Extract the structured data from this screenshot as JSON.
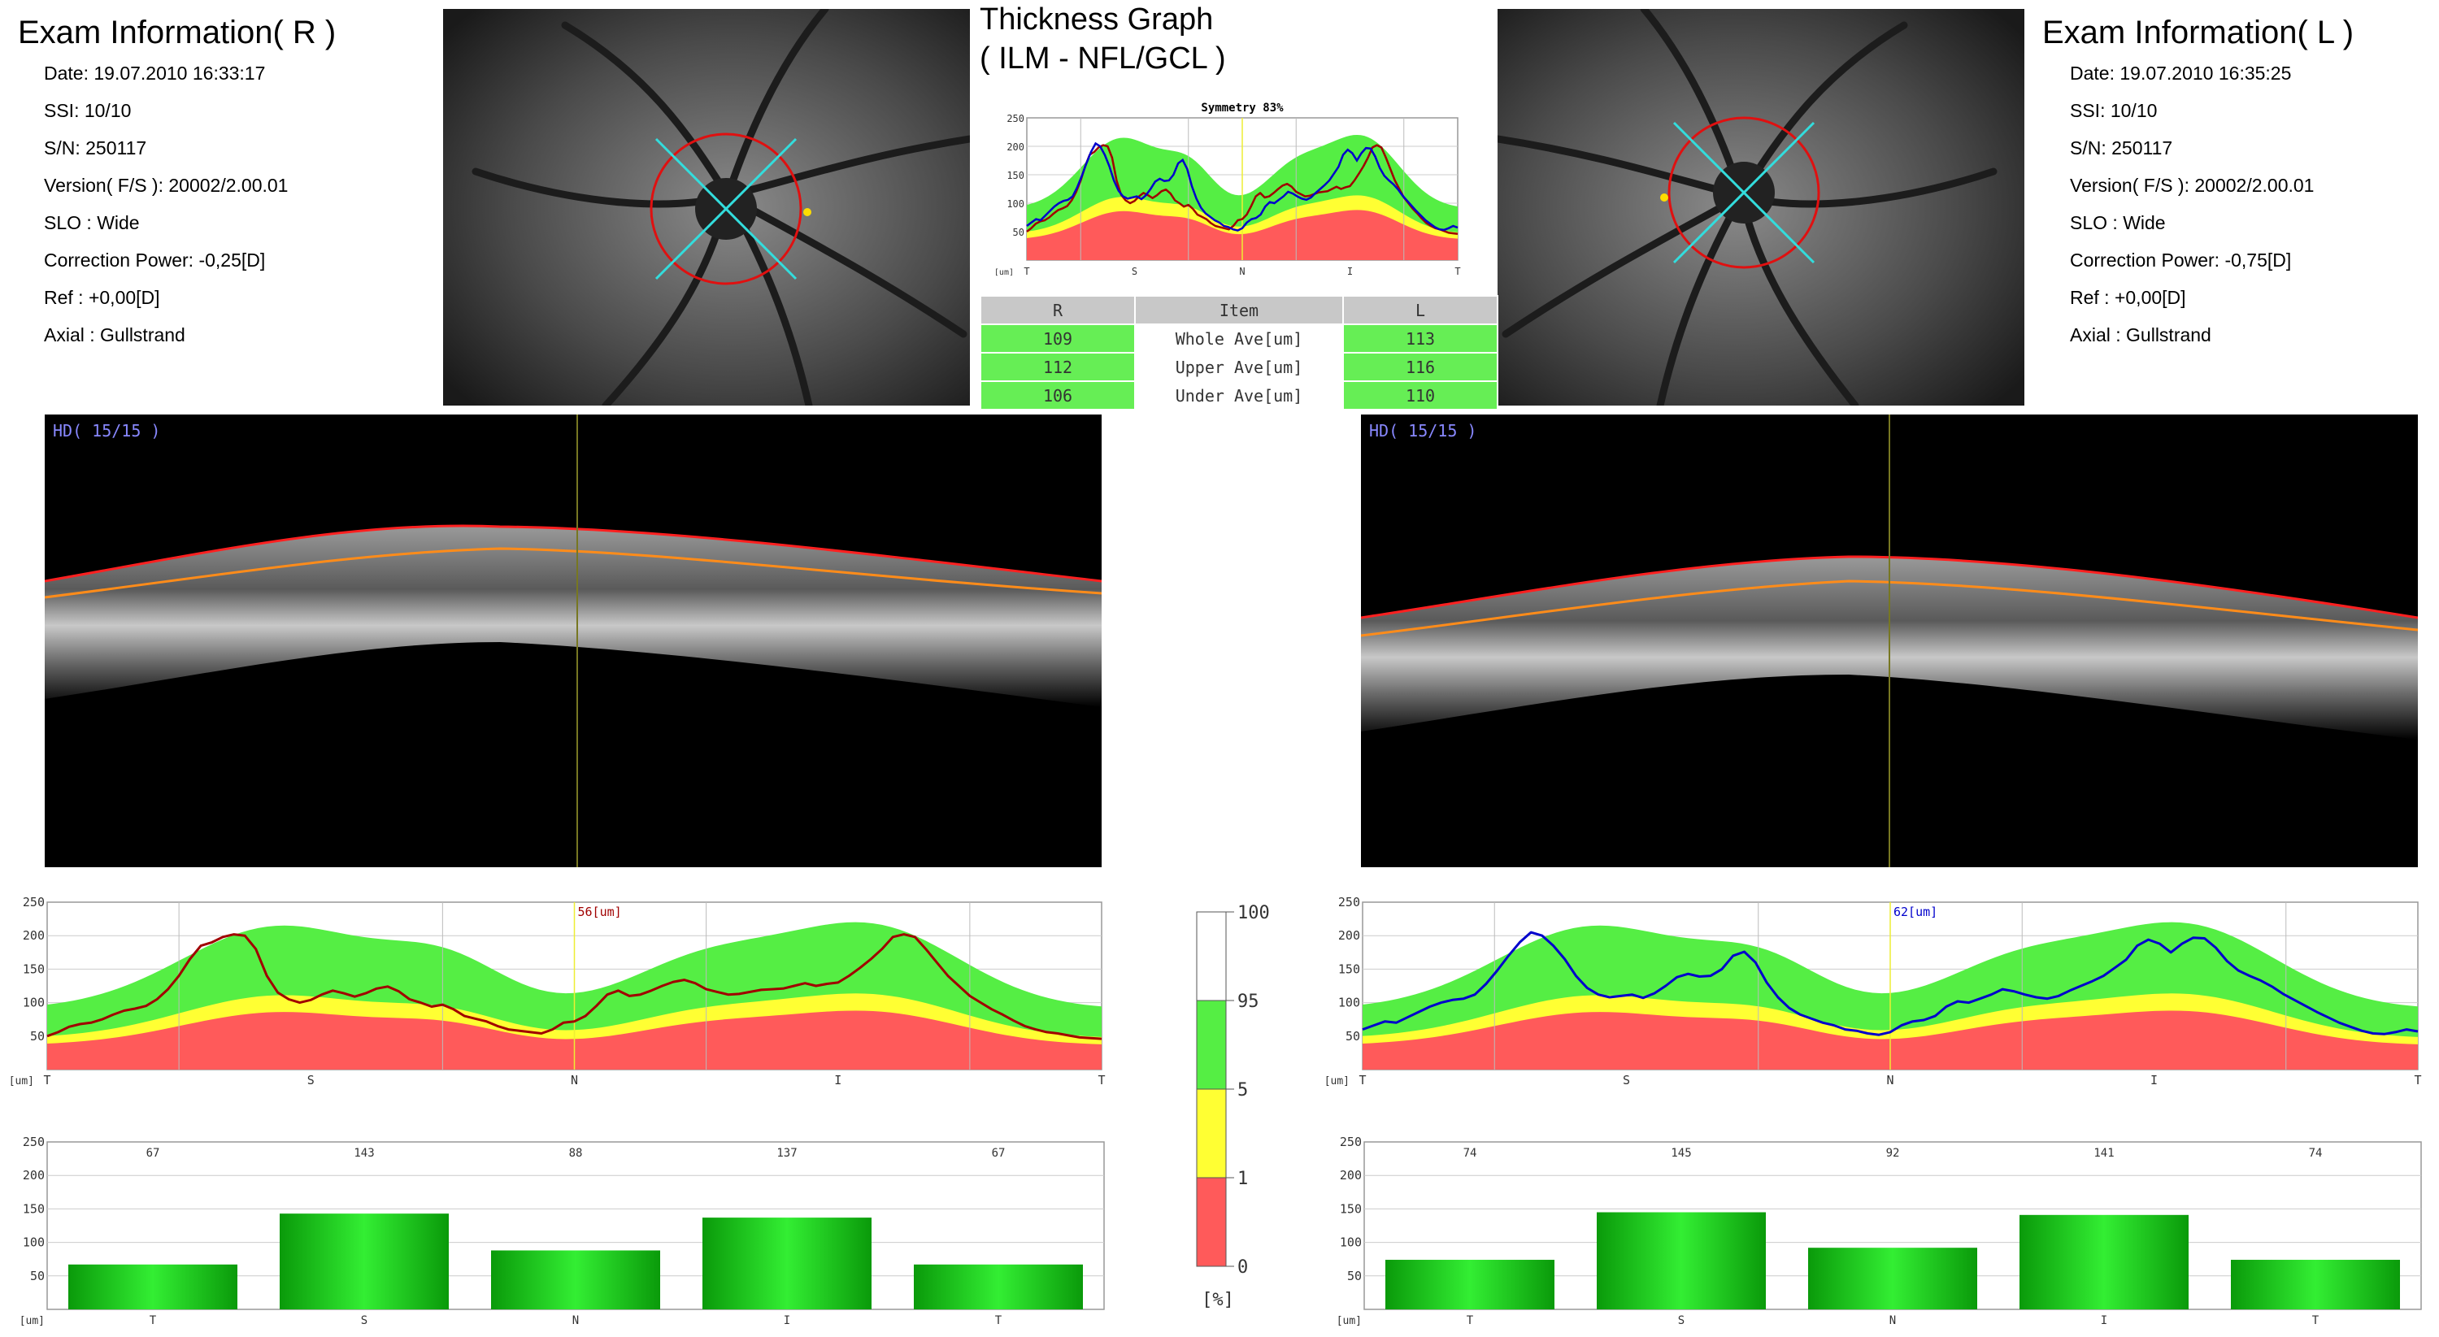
{
  "right": {
    "title": "Exam Information( R )",
    "info": [
      "Date: 19.07.2010 16:33:17",
      "SSI: 10/10",
      "S/N: 250117",
      "Version( F/S ): 20002/2.00.01",
      "SLO : Wide",
      "Correction Power: -0,25[D]",
      "Ref : +0,00[D]",
      "Axial : Gullstrand"
    ],
    "bscan_label": "HD( 15/15 )",
    "cursor_label": "56[um]",
    "profile_color": "#a00000",
    "profile": [
      50,
      56,
      64,
      68,
      70,
      75,
      82,
      88,
      91,
      95,
      105,
      120,
      140,
      165,
      185,
      190,
      198,
      202,
      200,
      180,
      140,
      115,
      105,
      100,
      104,
      112,
      118,
      114,
      109,
      114,
      121,
      124,
      117,
      105,
      100,
      94,
      97,
      90,
      80,
      76,
      72,
      65,
      60,
      58,
      56,
      54,
      60,
      70,
      72,
      80,
      95,
      112,
      118,
      110,
      112,
      118,
      125,
      131,
      134,
      129,
      120,
      116,
      112,
      113,
      116,
      119,
      120,
      121,
      125,
      129,
      125,
      128,
      130,
      140,
      152,
      165,
      180,
      198,
      202,
      198,
      180,
      160,
      140,
      125,
      110,
      100,
      90,
      82,
      73,
      65,
      60,
      56,
      54,
      51,
      48,
      47,
      46
    ],
    "sectors": {
      "labels": [
        "T",
        "S",
        "N",
        "I",
        "T"
      ],
      "values": [
        67,
        143,
        88,
        137,
        67
      ]
    }
  },
  "left": {
    "title": "Exam Information( L )",
    "info": [
      "Date: 19.07.2010 16:35:25",
      "SSI: 10/10",
      "S/N: 250117",
      "Version( F/S ): 20002/2.00.01",
      "SLO : Wide",
      "Correction Power: -0,75[D]",
      "Ref : +0,00[D]",
      "Axial : Gullstrand"
    ],
    "bscan_label": "HD( 15/15 )",
    "cursor_label": "62[um]",
    "profile_color": "#0000cc",
    "profile": [
      60,
      66,
      72,
      70,
      78,
      86,
      94,
      100,
      104,
      106,
      112,
      128,
      148,
      170,
      190,
      205,
      200,
      185,
      165,
      140,
      122,
      112,
      108,
      110,
      112,
      107,
      114,
      125,
      138,
      143,
      139,
      140,
      150,
      170,
      176,
      160,
      130,
      108,
      92,
      82,
      76,
      70,
      66,
      60,
      58,
      54,
      52,
      56,
      66,
      72,
      74,
      80,
      94,
      102,
      100,
      106,
      112,
      120,
      117,
      112,
      108,
      106,
      110,
      118,
      125,
      132,
      140,
      152,
      164,
      185,
      194,
      188,
      175,
      188,
      197,
      196,
      182,
      162,
      148,
      140,
      133,
      124,
      113,
      104,
      95,
      86,
      78,
      70,
      64,
      58,
      54,
      53,
      56,
      60,
      57
    ],
    "sectors": {
      "labels": [
        "T",
        "S",
        "N",
        "I",
        "T"
      ],
      "values": [
        74,
        145,
        92,
        141,
        74
      ]
    }
  },
  "thickness_graph": {
    "title_line1": "Thickness Graph",
    "title_line2": "( ILM - NFL/GCL )",
    "symmetry_label": "Symmetry 83%"
  },
  "summary_table": {
    "headers": [
      "R",
      "Item",
      "L"
    ],
    "rows": [
      {
        "r": "109",
        "item": "Whole Ave[um]",
        "l": "113"
      },
      {
        "r": "112",
        "item": "Upper Ave[um]",
        "l": "116"
      },
      {
        "r": "106",
        "item": "Under Ave[um]",
        "l": "110"
      }
    ]
  },
  "chart_data": [
    {
      "type": "line",
      "title": "",
      "xlabel": "[um]",
      "categories": [
        "T",
        "S",
        "N",
        "I",
        "T"
      ],
      "ylim": [
        0,
        250
      ],
      "yticks": [
        50,
        100,
        150,
        200,
        250
      ],
      "series": [],
      "normative_bands": {
        "colors": {
          "red": "#ff5a5a",
          "yellow": "#ffff33",
          "green": "#55ee44"
        }
      }
    },
    {
      "type": "bar",
      "title": "",
      "xlabel": "[um]",
      "categories": [
        "T",
        "S",
        "N",
        "I",
        "T"
      ],
      "ylim": [
        0,
        250
      ],
      "yticks": [
        50,
        100,
        150,
        200,
        250
      ]
    }
  ],
  "legend_scale": {
    "ticks": [
      "100",
      "95",
      "5",
      "1",
      "0"
    ],
    "unit": "[%]",
    "colors": [
      "#ffffff",
      "#55ee44",
      "#ffff33",
      "#ff5a5a"
    ]
  },
  "axis": {
    "unit": "[um]",
    "yticks": [
      "250",
      "200",
      "150",
      "100",
      "50"
    ],
    "xcats": [
      "T",
      "S",
      "N",
      "I",
      "T"
    ]
  }
}
